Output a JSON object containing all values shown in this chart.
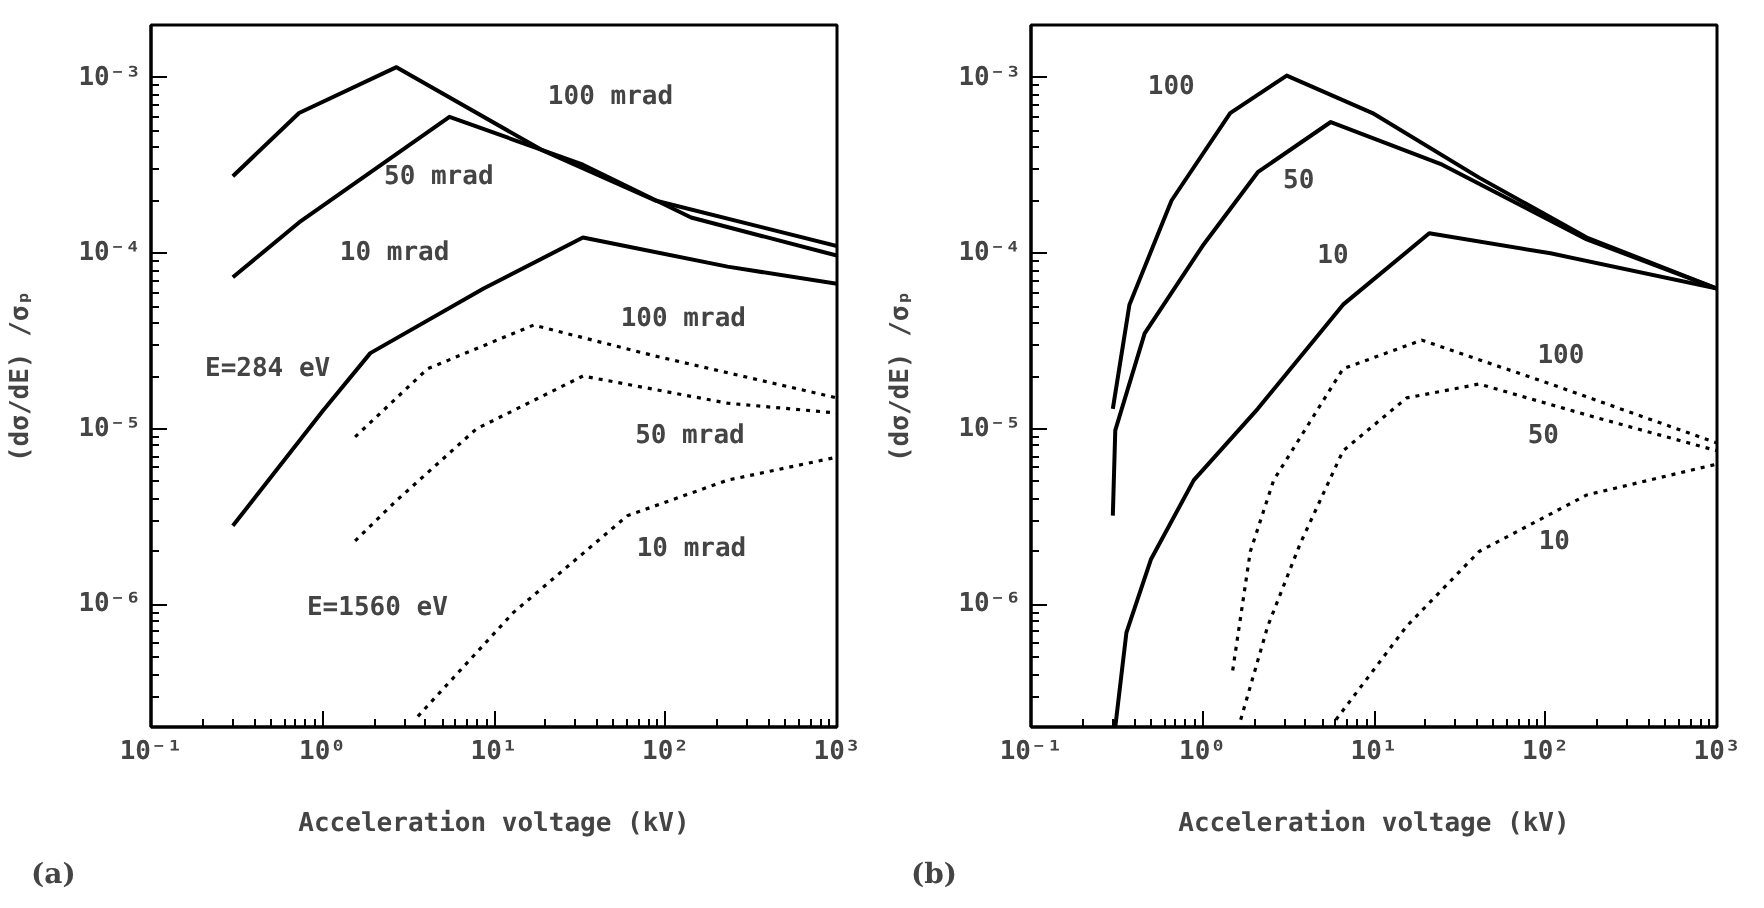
{
  "chart_data": [
    {
      "type": "line",
      "title": "(a)",
      "xlabel": "Acceleration voltage (kV)",
      "ylabel": "(dσ/dE) /σₚ",
      "log": "xy",
      "grid": false,
      "xlim": [
        0.1,
        1000
      ],
      "ylim": [
        2e-07,
        0.002
      ],
      "xticks": [
        {
          "value": 0.1,
          "label": "10⁻¹"
        },
        {
          "value": 1,
          "label": "10⁰"
        },
        {
          "value": 10,
          "label": "10¹"
        },
        {
          "value": 100,
          "label": "10²"
        },
        {
          "value": 1000,
          "label": "10³"
        }
      ],
      "yticks": [
        {
          "value": 1e-06,
          "label": "10⁻⁶"
        },
        {
          "value": 1e-05,
          "label": "10⁻⁵"
        },
        {
          "value": 0.0001,
          "label": "10⁻⁴"
        },
        {
          "value": 0.001,
          "label": "10⁻³"
        }
      ],
      "series": [
        {
          "name": "100 mrad",
          "color": "#000000",
          "line_style": "solid",
          "x": [
            0.3,
            0.73,
            2.7,
            18.8,
            87,
            1000
          ],
          "values": [
            0.000275,
            0.00063,
            0.00115,
            0.00039,
            0.0002,
            0.00011
          ]
        },
        {
          "name": "50 mrad",
          "color": "#000000",
          "line_style": "solid",
          "x": [
            0.3,
            0.73,
            5.5,
            33,
            141,
            1000
          ],
          "values": [
            7.3e-05,
            0.00015,
            0.0006,
            0.00032,
            0.00016,
            9.7e-05
          ]
        },
        {
          "name": "10 mrad",
          "color": "#000000",
          "line_style": "solid",
          "x": [
            0.3,
            1,
            1.9,
            8.7,
            33,
            230,
            1000
          ],
          "values": [
            2.8e-06,
            1.26e-05,
            2.7e-05,
            6.3e-05,
            0.000123,
            8.4e-05,
            6.7e-05
          ]
        },
        {
          "name": "100 mrad",
          "color": "#000000",
          "line_style": "dotted",
          "x": [
            1.55,
            4.1,
            17,
            87,
            1000
          ],
          "values": [
            9e-06,
            2.2e-05,
            3.9e-05,
            2.6e-05,
            1.5e-05
          ]
        },
        {
          "name": "50 mrad",
          "color": "#000000",
          "line_style": "dotted",
          "x": [
            1.55,
            2.7,
            7.9,
            33,
            230,
            1000
          ],
          "values": [
            2.3e-06,
            3.9e-06,
            1e-05,
            2e-05,
            1.4e-05,
            1.23e-05
          ]
        },
        {
          "name": "10 mrad",
          "color": "#000000",
          "line_style": "dotted",
          "x": [
            3.6,
            13,
            60,
            230,
            1000
          ],
          "values": [
            2.3e-07,
            9e-07,
            3.2e-06,
            5.1e-06,
            6.9e-06
          ]
        }
      ],
      "annotations": [
        "E=284 eV",
        "E=1560 eV"
      ]
    },
    {
      "type": "line",
      "title": "(b)",
      "xlabel": "Acceleration voltage (kV)",
      "ylabel": "(dσ/dE) /σₚ",
      "log": "xy",
      "grid": false,
      "xlim": [
        0.1,
        1000
      ],
      "ylim": [
        2e-07,
        0.002
      ],
      "xticks": [
        {
          "value": 0.1,
          "label": "10⁻¹"
        },
        {
          "value": 1,
          "label": "10⁰"
        },
        {
          "value": 10,
          "label": "10¹"
        },
        {
          "value": 100,
          "label": "10²"
        },
        {
          "value": 1000,
          "label": "10³"
        }
      ],
      "yticks": [
        {
          "value": 1e-06,
          "label": "10⁻⁶"
        },
        {
          "value": 1e-05,
          "label": "10⁻⁵"
        },
        {
          "value": 0.0001,
          "label": "10⁻⁴"
        },
        {
          "value": 0.001,
          "label": "10⁻³"
        }
      ],
      "series": [
        {
          "name": "100",
          "color": "#000000",
          "line_style": "solid",
          "x": [
            0.3,
            0.375,
            0.66,
            1.45,
            3.1,
            9.8,
            41,
            174,
            1000
          ],
          "values": [
            1.3e-05,
            5.1e-05,
            0.0002,
            0.00063,
            0.00103,
            0.00063,
            0.00027,
            0.000123,
            6.3e-05
          ]
        },
        {
          "name": "50",
          "color": "#000000",
          "line_style": "solid",
          "x": [
            0.3,
            0.31,
            0.46,
            1.0,
            2.1,
            5.6,
            25,
            174,
            1000
          ],
          "values": [
            3.2e-06,
            9.8e-06,
            3.5e-05,
            0.00011,
            0.00029,
            0.00056,
            0.00032,
            0.00012,
            6.3e-05
          ]
        },
        {
          "name": "10",
          "color": "#000000",
          "line_style": "solid",
          "x": [
            0.31,
            0.36,
            0.5,
            0.89,
            2.1,
            6.6,
            21,
            107,
            1000
          ],
          "values": [
            2e-07,
            6.9e-07,
            1.8e-06,
            5.1e-06,
            1.3e-05,
            5.1e-05,
            0.00013,
            0.0001,
            6.3e-05
          ]
        },
        {
          "name": "100",
          "color": "#000000",
          "line_style": "dotted",
          "x": [
            1.5,
            1.9,
            2.6,
            6.6,
            19,
            107,
            1000
          ],
          "values": [
            4.2e-07,
            2e-06,
            5.1e-06,
            2.2e-05,
            3.2e-05,
            1.8e-05,
            8.3e-06
          ]
        },
        {
          "name": "50",
          "color": "#000000",
          "line_style": "dotted",
          "x": [
            1.67,
            2.4,
            3.7,
            6.6,
            15.5,
            41,
            174,
            1000
          ],
          "values": [
            2.2e-07,
            7.5e-07,
            2.2e-06,
            7.5e-06,
            1.5e-05,
            1.8e-05,
            1.2e-05,
            7.5e-06
          ]
        },
        {
          "name": "10",
          "color": "#000000",
          "line_style": "dotted",
          "x": [
            6.0,
            15.5,
            41,
            174,
            1000
          ],
          "values": [
            2.2e-07,
            7.5e-07,
            2e-06,
            4.2e-06,
            6.3e-06
          ]
        }
      ]
    }
  ]
}
